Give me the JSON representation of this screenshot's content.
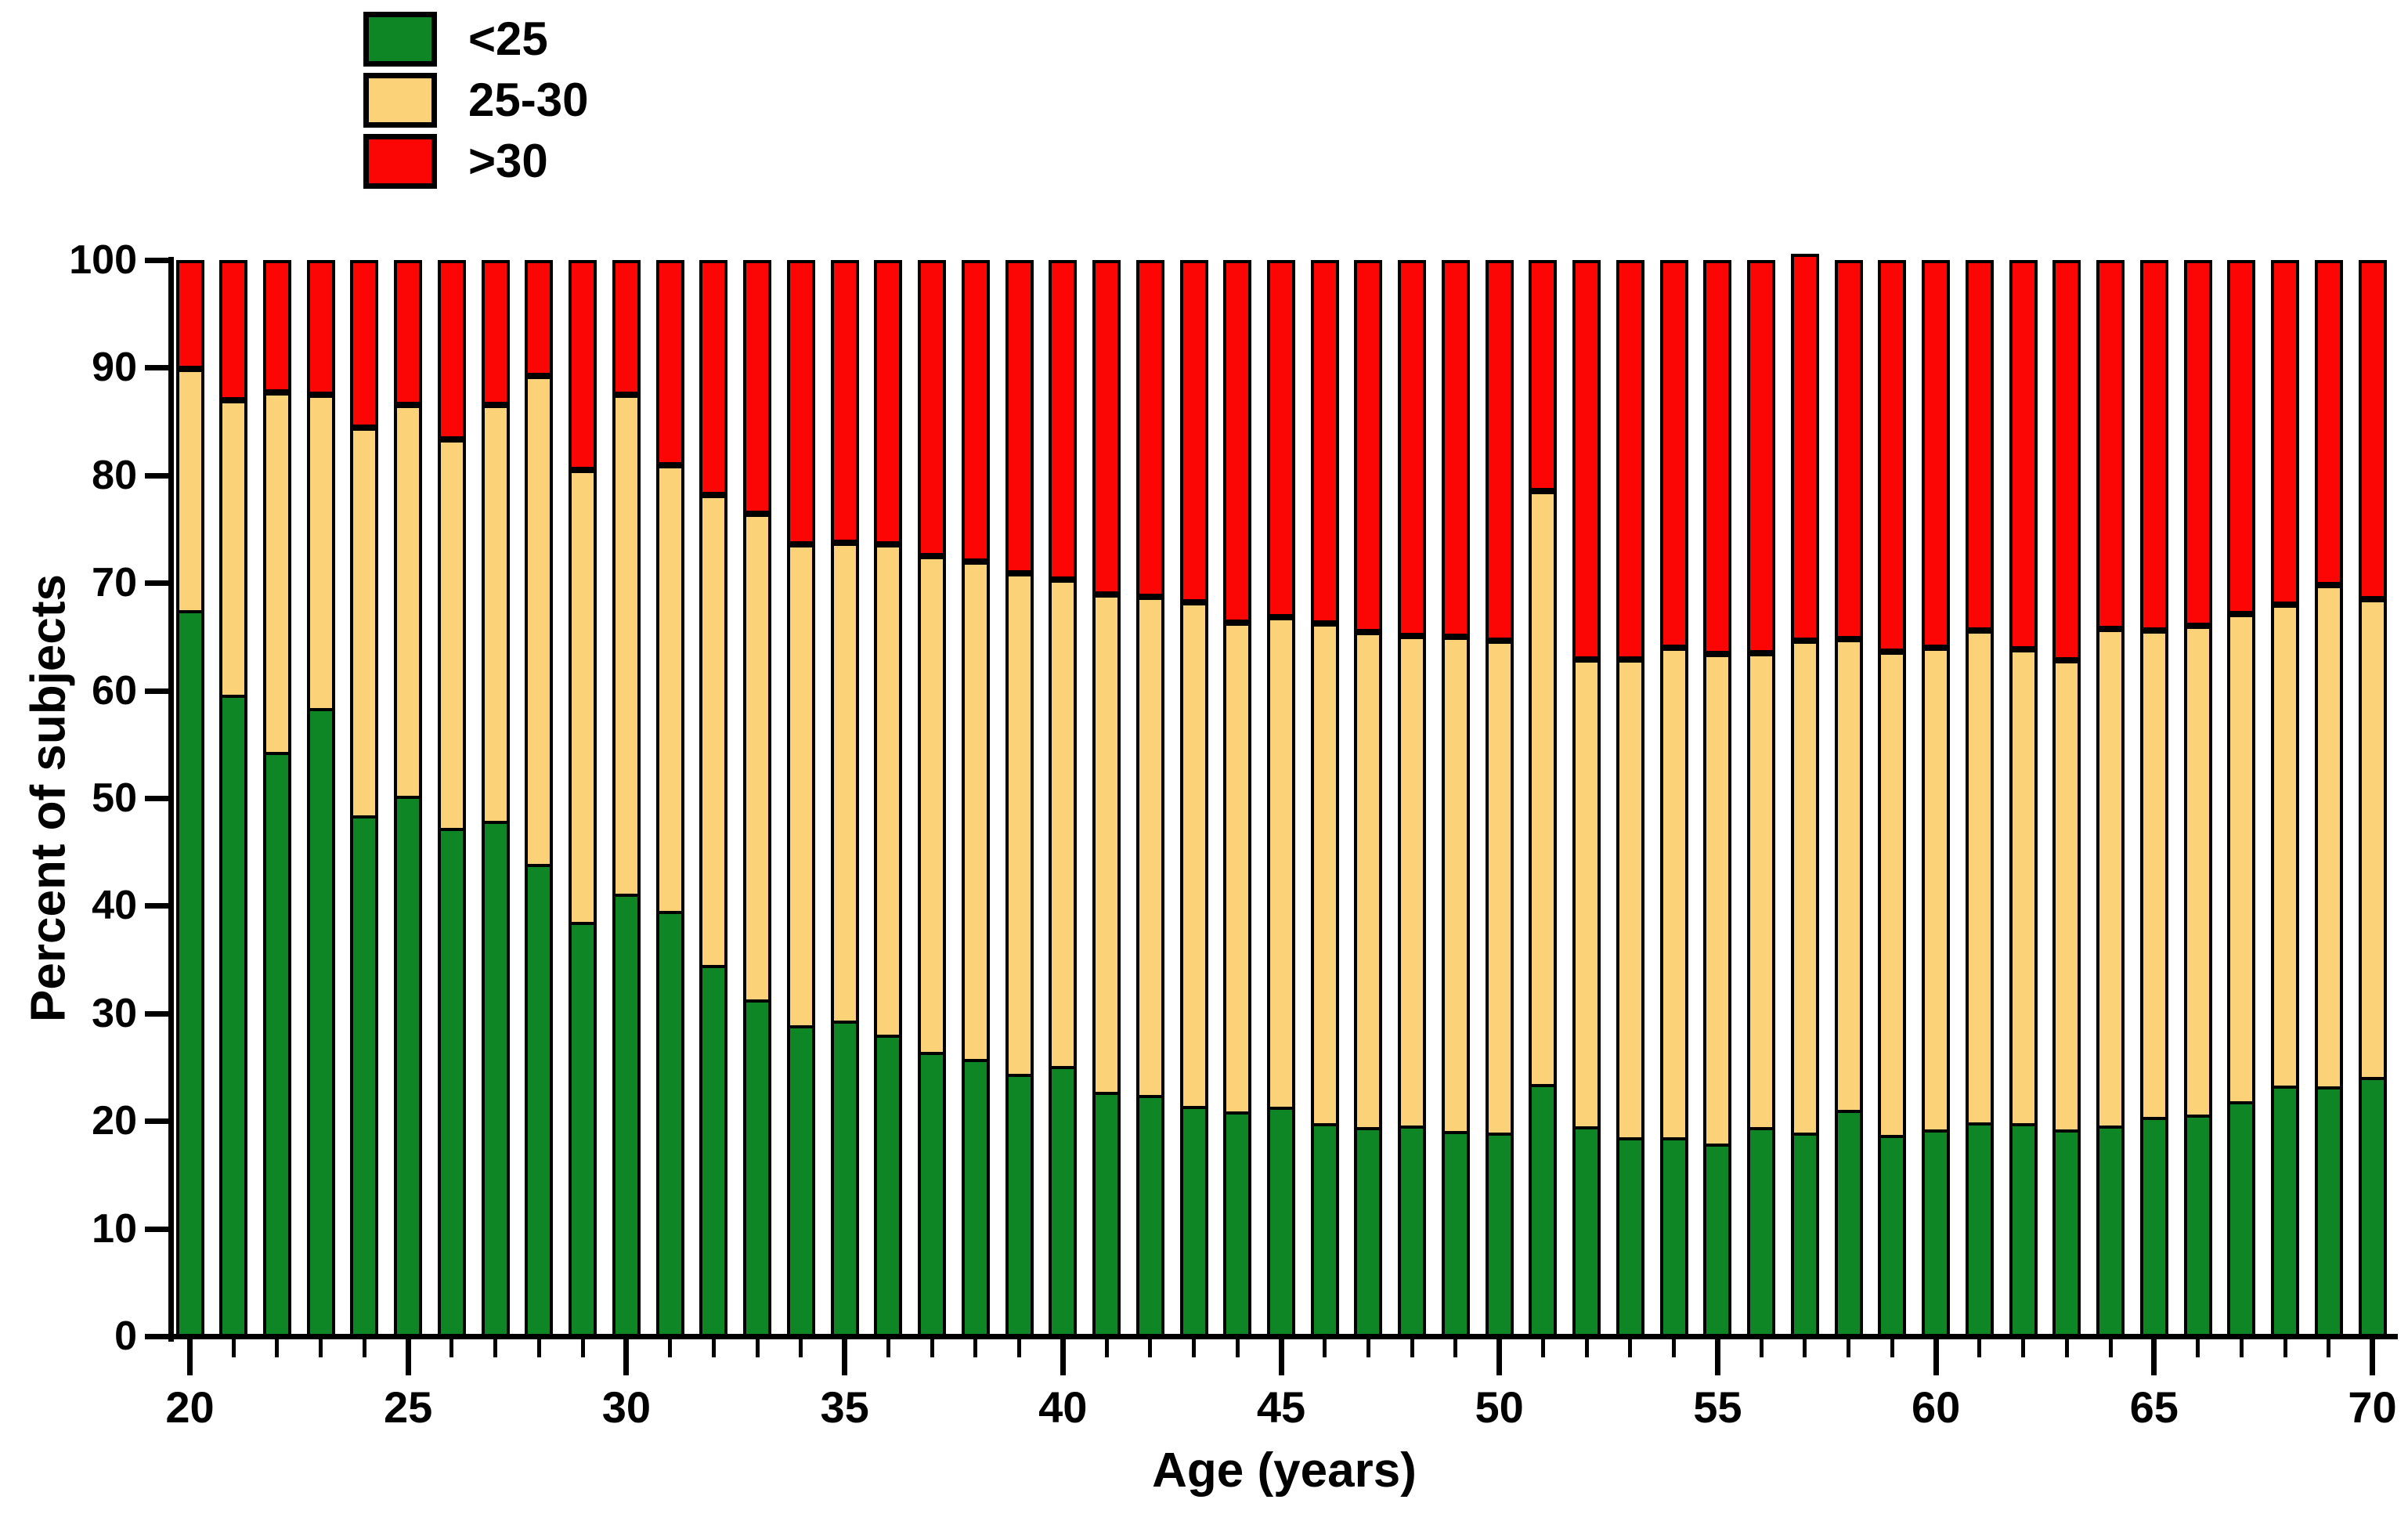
{
  "chart_data": {
    "type": "bar",
    "stacked": true,
    "title": "",
    "xlabel": "Age (years)",
    "ylabel": "Percent of subjects",
    "ylim": [
      0,
      100
    ],
    "yticks": [
      0,
      10,
      20,
      30,
      40,
      50,
      60,
      70,
      80,
      90,
      100
    ],
    "xticks_labeled": [
      20,
      25,
      30,
      35,
      40,
      45,
      50,
      55,
      60,
      65,
      70
    ],
    "grid": false,
    "legend_position": "top-left",
    "x": [
      20,
      21,
      22,
      23,
      24,
      25,
      26,
      27,
      28,
      29,
      30,
      31,
      32,
      33,
      34,
      35,
      36,
      37,
      38,
      39,
      40,
      41,
      42,
      43,
      44,
      45,
      46,
      47,
      48,
      49,
      50,
      51,
      52,
      53,
      54,
      55,
      56,
      57,
      58,
      59,
      60,
      61,
      62,
      63,
      64,
      65,
      66,
      67,
      68,
      69,
      70
    ],
    "series": [
      {
        "name": "<25",
        "color": "#0E8626",
        "values": [
          67.5,
          59.6,
          54.3,
          58.4,
          48.4,
          50.2,
          47.2,
          47.9,
          43.9,
          38.5,
          41.1,
          39.5,
          34.5,
          31.3,
          28.9,
          29.3,
          28.0,
          26.4,
          25.8,
          24.4,
          25.1,
          22.7,
          22.4,
          21.4,
          20.9,
          21.3,
          19.8,
          19.4,
          19.6,
          19.1,
          18.9,
          23.4,
          19.5,
          18.5,
          18.5,
          17.9,
          19.4,
          18.9,
          21.0,
          18.7,
          19.2,
          19.9,
          19.8,
          19.2,
          19.6,
          20.4,
          20.6,
          21.8,
          23.3,
          23.2,
          24.1
        ]
      },
      {
        "name": "25-30",
        "color": "#FBD278",
        "values": [
          22.4,
          27.4,
          33.4,
          29.1,
          36.0,
          36.3,
          36.1,
          38.6,
          45.3,
          42.0,
          46.4,
          41.4,
          43.7,
          45.1,
          44.7,
          44.4,
          45.6,
          46.1,
          46.2,
          46.5,
          45.2,
          46.2,
          46.3,
          46.8,
          45.4,
          45.5,
          46.4,
          46.0,
          45.5,
          45.9,
          45.7,
          55.1,
          43.4,
          44.4,
          45.5,
          45.5,
          44.1,
          45.7,
          43.8,
          44.9,
          44.8,
          45.7,
          44.0,
          43.6,
          46.1,
          45.2,
          45.4,
          45.3,
          44.7,
          46.6,
          44.4
        ]
      },
      {
        "name": ">30",
        "color": "#FB0505",
        "values": [
          10.1,
          13.0,
          12.3,
          12.5,
          15.6,
          13.5,
          16.7,
          13.5,
          10.8,
          19.5,
          12.5,
          19.1,
          21.8,
          23.6,
          26.4,
          26.3,
          26.4,
          27.5,
          28.0,
          29.1,
          29.7,
          31.1,
          31.3,
          31.8,
          33.7,
          33.2,
          33.8,
          34.6,
          34.9,
          35.0,
          35.4,
          21.5,
          37.1,
          37.1,
          36.0,
          36.6,
          36.5,
          36.0,
          35.2,
          36.4,
          36.0,
          34.4,
          36.2,
          37.2,
          34.3,
          34.4,
          34.0,
          32.9,
          32.0,
          30.2,
          31.5
        ]
      }
    ]
  }
}
